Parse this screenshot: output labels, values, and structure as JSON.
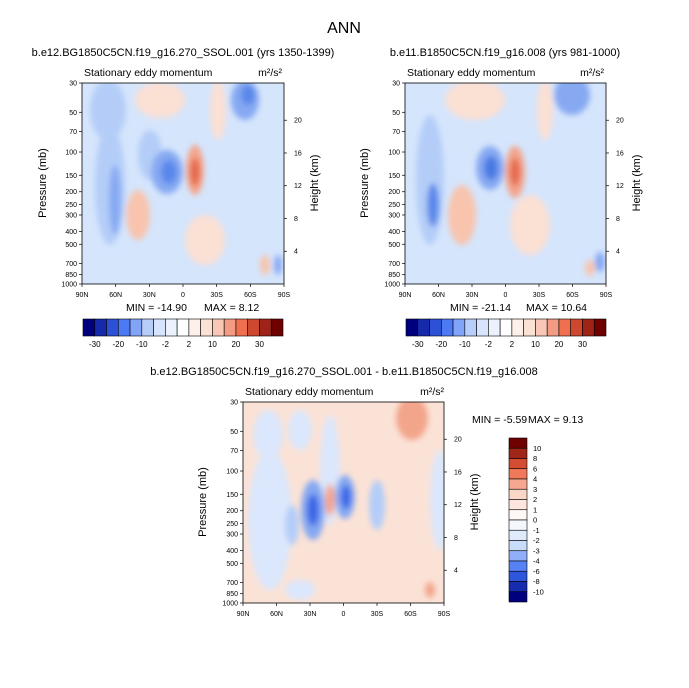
{
  "figure": {
    "title": "ANN",
    "colors": {
      "neg_deep": "#00007f",
      "neg_mid": "#3a6cf4",
      "neg_light": "#c9dcfb",
      "neutral": "#ffffff",
      "pos_light": "#fad6c6",
      "pos_mid": "#ee6040",
      "pos_deep": "#6e0000"
    }
  },
  "chart_data": [
    {
      "type": "heatmap",
      "name": "panel-1",
      "title": "b.e12.BG1850C5CN.f19_g16.270_SSOL.001 (yrs 1350-1399)",
      "subtitle": "Stationary eddy momentum",
      "units": "m²/s²",
      "ylabel": "Pressure (mb)",
      "ylabel_right": "Height (km)",
      "x_ticks": [
        "90N",
        "60N",
        "30N",
        "0",
        "30S",
        "60S",
        "90S"
      ],
      "y_ticks": [
        30,
        50,
        70,
        100,
        150,
        200,
        250,
        300,
        400,
        500,
        700,
        850,
        1000
      ],
      "height_ticks": [
        4,
        8,
        12,
        16,
        20
      ],
      "min_label": "MIN = -14.90",
      "max_label": "MAX =  8.12",
      "colorbar": {
        "orientation": "horizontal",
        "tick_labels": [
          "-30",
          "-20",
          "-10",
          "-2",
          "2",
          "10",
          "20",
          "30"
        ],
        "levels": [
          -30,
          -25,
          -20,
          -15,
          -10,
          -5,
          -2,
          -1,
          1,
          2,
          5,
          10,
          15,
          20,
          25,
          30
        ]
      }
    },
    {
      "type": "heatmap",
      "name": "panel-2",
      "title": "b.e11.B1850C5CN.f19_g16.008 (yrs 981-1000)",
      "subtitle": "Stationary eddy momentum",
      "units": "m²/s²",
      "ylabel": "Pressure (mb)",
      "ylabel_right": "Height (km)",
      "x_ticks": [
        "90N",
        "60N",
        "30N",
        "0",
        "30S",
        "60S",
        "90S"
      ],
      "y_ticks": [
        30,
        50,
        70,
        100,
        150,
        200,
        250,
        300,
        400,
        500,
        700,
        850,
        1000
      ],
      "height_ticks": [
        4,
        8,
        12,
        16,
        20
      ],
      "min_label": "MIN = -21.14",
      "max_label": "MAX =  10.64",
      "colorbar": {
        "orientation": "horizontal",
        "tick_labels": [
          "-30",
          "-20",
          "-10",
          "-2",
          "2",
          "10",
          "20",
          "30"
        ],
        "levels": [
          -30,
          -25,
          -20,
          -15,
          -10,
          -5,
          -2,
          -1,
          1,
          2,
          5,
          10,
          15,
          20,
          25,
          30
        ]
      }
    },
    {
      "type": "heatmap",
      "name": "panel-diff",
      "title": "b.e12.BG1850C5CN.f19_g16.270_SSOL.001 - b.e11.B1850C5CN.f19_g16.008",
      "subtitle": "Stationary eddy momentum",
      "units": "m²/s²",
      "ylabel": "Pressure (mb)",
      "ylabel_right": "Height (km)",
      "x_ticks": [
        "90N",
        "60N",
        "30N",
        "0",
        "30S",
        "60S",
        "90S"
      ],
      "y_ticks": [
        30,
        50,
        70,
        100,
        150,
        200,
        250,
        300,
        400,
        500,
        700,
        850,
        1000
      ],
      "height_ticks": [
        4,
        8,
        12,
        16,
        20
      ],
      "min_label": "MIN = -5.59",
      "max_label": "MAX =  9.13",
      "colorbar": {
        "orientation": "vertical",
        "tick_labels": [
          "10",
          "8",
          "6",
          "4",
          "3",
          "2",
          "1",
          "0",
          "-1",
          "-2",
          "-3",
          "-4",
          "-6",
          "-8",
          "-10"
        ],
        "levels": [
          10,
          8,
          6,
          4,
          3,
          2,
          1,
          0,
          -1,
          -2,
          -3,
          -4,
          -6,
          -8,
          -10
        ]
      }
    }
  ]
}
